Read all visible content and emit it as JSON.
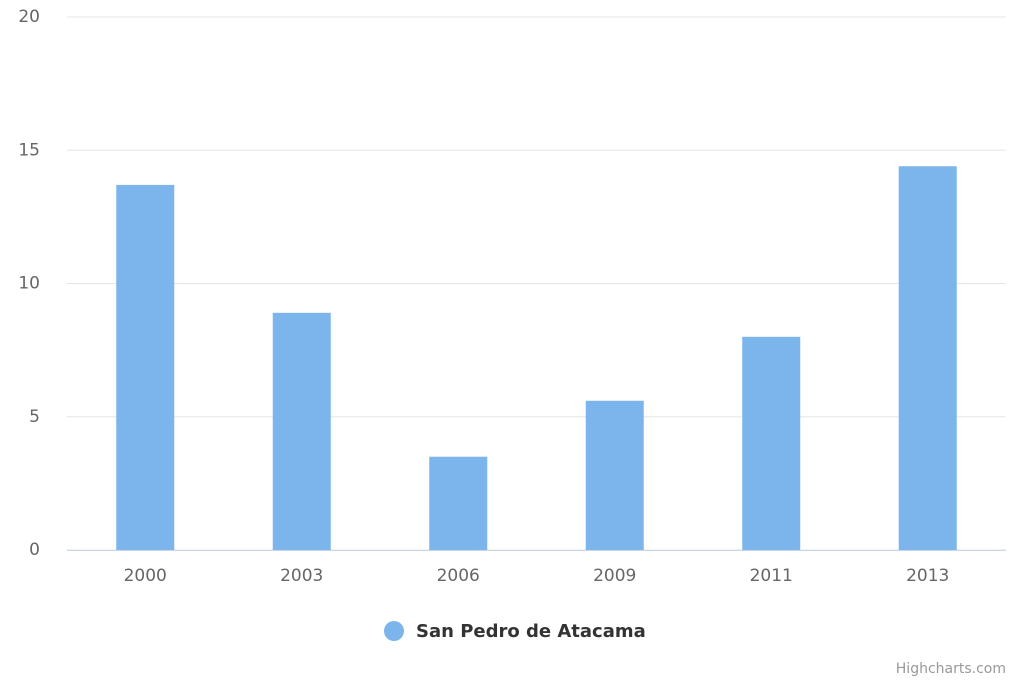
{
  "chart_data": {
    "type": "bar",
    "categories": [
      "2000",
      "2003",
      "2006",
      "2009",
      "2011",
      "2013"
    ],
    "series": [
      {
        "name": "San Pedro de Atacama",
        "color": "#7cb5ec",
        "values": [
          13.7,
          8.9,
          3.5,
          5.6,
          8.0,
          14.4
        ]
      }
    ],
    "ylim": [
      0,
      20
    ],
    "yticks": [
      0,
      5,
      10,
      15,
      20
    ],
    "grid": true,
    "credit": "Highcharts.com"
  }
}
